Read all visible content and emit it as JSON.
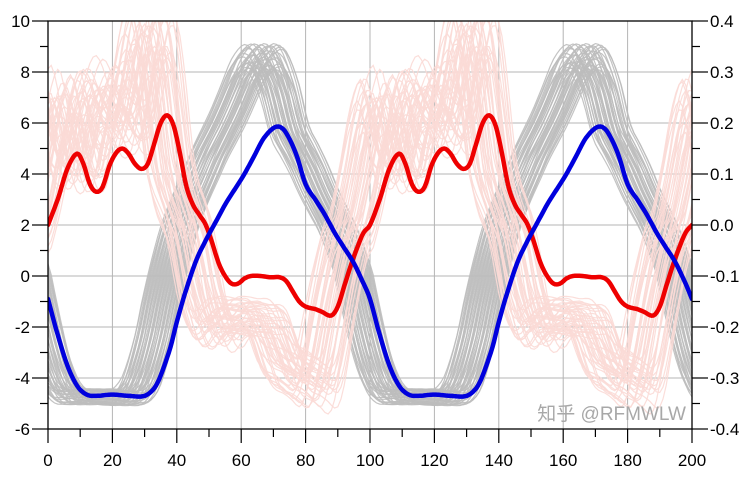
{
  "chart_data": {
    "type": "line",
    "title": "",
    "xlabel": "",
    "ylabel": "",
    "xlim": [
      0,
      200
    ],
    "ylim": [
      -6,
      10
    ],
    "y2lim": [
      -0.4,
      0.4
    ],
    "grid": true,
    "x_ticks": [
      "0",
      "20",
      "40",
      "60",
      "80",
      "100",
      "120",
      "140",
      "160",
      "180",
      "200"
    ],
    "y_ticks": [
      "10",
      "8",
      "6",
      "4",
      "2",
      "0",
      "-2",
      "-4",
      "-6"
    ],
    "y2_ticks": [
      "0.4",
      "0.3",
      "0.2",
      "0.1",
      "0.0",
      "-0.1",
      "-0.2",
      "-0.3",
      "-0.4"
    ],
    "series": [
      {
        "color": "#ee0000",
        "axis": "left",
        "points": [
          [
            0,
            2.0
          ],
          [
            3,
            3.0
          ],
          [
            6,
            4.2
          ],
          [
            9,
            4.8
          ],
          [
            11,
            4.4
          ],
          [
            13,
            3.6
          ],
          [
            15,
            3.3
          ],
          [
            17,
            3.5
          ],
          [
            19,
            4.3
          ],
          [
            21,
            4.8
          ],
          [
            23,
            5.0
          ],
          [
            25,
            4.8
          ],
          [
            27,
            4.4
          ],
          [
            29,
            4.2
          ],
          [
            31,
            4.4
          ],
          [
            33,
            5.2
          ],
          [
            35,
            6.0
          ],
          [
            37,
            6.3
          ],
          [
            39,
            5.9
          ],
          [
            41,
            4.8
          ],
          [
            43,
            3.5
          ],
          [
            45,
            2.8
          ],
          [
            47,
            2.4
          ],
          [
            49,
            2.0
          ],
          [
            51,
            1.3
          ],
          [
            53,
            0.5
          ],
          [
            55,
            0.0
          ],
          [
            57,
            -0.3
          ],
          [
            59,
            -0.3
          ],
          [
            61,
            -0.1
          ],
          [
            63,
            0.0
          ],
          [
            66,
            0.0
          ],
          [
            69,
            -0.05
          ],
          [
            72,
            -0.05
          ],
          [
            74,
            -0.2
          ],
          [
            76,
            -0.6
          ],
          [
            78,
            -1.0
          ],
          [
            80,
            -1.2
          ],
          [
            83,
            -1.3
          ],
          [
            85,
            -1.4
          ],
          [
            88,
            -1.55
          ],
          [
            90,
            -1.2
          ],
          [
            92,
            -0.4
          ],
          [
            94,
            0.4
          ],
          [
            96,
            1.1
          ],
          [
            98,
            1.7
          ],
          [
            100,
            2.0
          ],
          [
            103,
            3.0
          ],
          [
            106,
            4.2
          ],
          [
            109,
            4.8
          ],
          [
            111,
            4.4
          ],
          [
            113,
            3.6
          ],
          [
            115,
            3.3
          ],
          [
            117,
            3.5
          ],
          [
            119,
            4.3
          ],
          [
            121,
            4.8
          ],
          [
            123,
            5.0
          ],
          [
            125,
            4.8
          ],
          [
            127,
            4.4
          ],
          [
            129,
            4.2
          ],
          [
            131,
            4.4
          ],
          [
            133,
            5.2
          ],
          [
            135,
            6.0
          ],
          [
            137,
            6.3
          ],
          [
            139,
            5.9
          ],
          [
            141,
            4.8
          ],
          [
            143,
            3.5
          ],
          [
            145,
            2.8
          ],
          [
            147,
            2.4
          ],
          [
            149,
            2.0
          ],
          [
            151,
            1.3
          ],
          [
            153,
            0.5
          ],
          [
            155,
            0.0
          ],
          [
            157,
            -0.3
          ],
          [
            159,
            -0.3
          ],
          [
            161,
            -0.1
          ],
          [
            163,
            0.0
          ],
          [
            166,
            0.0
          ],
          [
            169,
            -0.05
          ],
          [
            172,
            -0.05
          ],
          [
            174,
            -0.2
          ],
          [
            176,
            -0.6
          ],
          [
            178,
            -1.0
          ],
          [
            180,
            -1.2
          ],
          [
            183,
            -1.3
          ],
          [
            185,
            -1.4
          ],
          [
            188,
            -1.55
          ],
          [
            190,
            -1.2
          ],
          [
            192,
            -0.4
          ],
          [
            194,
            0.4
          ],
          [
            196,
            1.1
          ],
          [
            198,
            1.7
          ],
          [
            200,
            2.0
          ]
        ]
      },
      {
        "color": "#0000dd",
        "axis": "left",
        "points": [
          [
            0,
            -0.9
          ],
          [
            3,
            -2.3
          ],
          [
            6,
            -3.5
          ],
          [
            9,
            -4.3
          ],
          [
            12,
            -4.65
          ],
          [
            15,
            -4.7
          ],
          [
            20,
            -4.65
          ],
          [
            25,
            -4.7
          ],
          [
            30,
            -4.7
          ],
          [
            33,
            -4.4
          ],
          [
            35,
            -3.9
          ],
          [
            38,
            -2.8
          ],
          [
            40,
            -1.8
          ],
          [
            43,
            -0.5
          ],
          [
            46,
            0.6
          ],
          [
            49,
            1.4
          ],
          [
            52,
            2.1
          ],
          [
            55,
            2.8
          ],
          [
            58,
            3.4
          ],
          [
            61,
            4.0
          ],
          [
            64,
            4.7
          ],
          [
            67,
            5.4
          ],
          [
            70,
            5.8
          ],
          [
            72,
            5.85
          ],
          [
            74,
            5.6
          ],
          [
            77,
            4.8
          ],
          [
            80,
            3.6
          ],
          [
            83,
            3.0
          ],
          [
            86,
            2.4
          ],
          [
            89,
            1.7
          ],
          [
            92,
            1.1
          ],
          [
            95,
            0.5
          ],
          [
            98,
            -0.3
          ],
          [
            100,
            -0.9
          ],
          [
            103,
            -2.3
          ],
          [
            106,
            -3.5
          ],
          [
            109,
            -4.3
          ],
          [
            112,
            -4.65
          ],
          [
            115,
            -4.7
          ],
          [
            120,
            -4.65
          ],
          [
            125,
            -4.7
          ],
          [
            130,
            -4.7
          ],
          [
            133,
            -4.4
          ],
          [
            135,
            -3.9
          ],
          [
            138,
            -2.8
          ],
          [
            140,
            -1.8
          ],
          [
            143,
            -0.5
          ],
          [
            146,
            0.6
          ],
          [
            149,
            1.4
          ],
          [
            152,
            2.1
          ],
          [
            155,
            2.8
          ],
          [
            158,
            3.4
          ],
          [
            161,
            4.0
          ],
          [
            164,
            4.7
          ],
          [
            167,
            5.4
          ],
          [
            170,
            5.8
          ],
          [
            172,
            5.85
          ],
          [
            174,
            5.6
          ],
          [
            177,
            4.8
          ],
          [
            180,
            3.6
          ],
          [
            183,
            3.0
          ],
          [
            186,
            2.4
          ],
          [
            189,
            1.7
          ],
          [
            192,
            1.1
          ],
          [
            195,
            0.5
          ],
          [
            198,
            -0.3
          ],
          [
            200,
            -0.9
          ]
        ]
      }
    ],
    "background_bands": [
      {
        "color": "#bdbdbd",
        "range": [
          -4.8,
          8.6
        ]
      },
      {
        "color": "#fbdad6",
        "range": [
          -4.3,
          9.5
        ]
      }
    ]
  },
  "watermark": "知乎 @RFMWLW"
}
